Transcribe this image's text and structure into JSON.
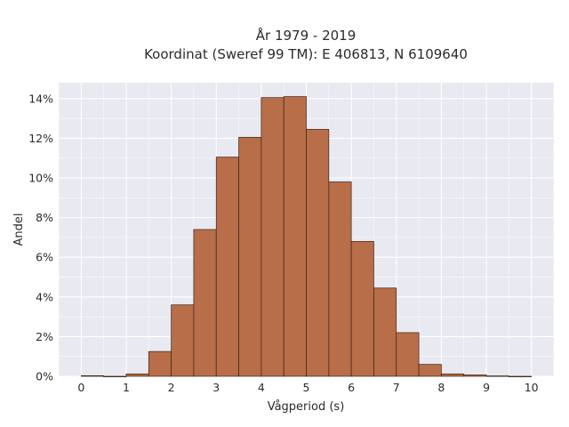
{
  "chart_data": {
    "type": "bar",
    "title_line1": "År 1979 - 2019",
    "title_line2": "Koordinat (Sweref 99 TM): E 406813, N 6109640",
    "xlabel": "Vågperiod (s)",
    "ylabel": "Andel",
    "bin_width": 0.5,
    "bins": [
      {
        "x0": 0.0,
        "x1": 0.5,
        "value": 0.0003
      },
      {
        "x0": 0.5,
        "x1": 1.0,
        "value": 0.0
      },
      {
        "x0": 1.0,
        "x1": 1.5,
        "value": 0.0012
      },
      {
        "x0": 1.5,
        "x1": 2.0,
        "value": 0.0125
      },
      {
        "x0": 2.0,
        "x1": 2.5,
        "value": 0.036
      },
      {
        "x0": 2.5,
        "x1": 3.0,
        "value": 0.074
      },
      {
        "x0": 3.0,
        "x1": 3.5,
        "value": 0.1105
      },
      {
        "x0": 3.5,
        "x1": 4.0,
        "value": 0.1205
      },
      {
        "x0": 4.0,
        "x1": 4.5,
        "value": 0.1405
      },
      {
        "x0": 4.5,
        "x1": 5.0,
        "value": 0.141
      },
      {
        "x0": 5.0,
        "x1": 5.5,
        "value": 0.1245
      },
      {
        "x0": 5.5,
        "x1": 6.0,
        "value": 0.098
      },
      {
        "x0": 6.0,
        "x1": 6.5,
        "value": 0.068
      },
      {
        "x0": 6.5,
        "x1": 7.0,
        "value": 0.0445
      },
      {
        "x0": 7.0,
        "x1": 7.5,
        "value": 0.022
      },
      {
        "x0": 7.5,
        "x1": 8.0,
        "value": 0.006
      },
      {
        "x0": 8.0,
        "x1": 8.5,
        "value": 0.0012
      },
      {
        "x0": 8.5,
        "x1": 9.0,
        "value": 0.0007
      },
      {
        "x0": 9.0,
        "x1": 9.5,
        "value": 0.0002
      },
      {
        "x0": 9.5,
        "x1": 10.0,
        "value": 0.0
      }
    ],
    "xlim": [
      -0.5,
      10.5
    ],
    "ylim": [
      0,
      0.148
    ],
    "x_ticks": [
      0,
      1,
      2,
      3,
      4,
      5,
      6,
      7,
      8,
      9,
      10
    ],
    "x_tick_labels": [
      "0",
      "1",
      "2",
      "3",
      "4",
      "5",
      "6",
      "7",
      "8",
      "9",
      "10"
    ],
    "y_ticks": [
      0,
      0.02,
      0.04,
      0.06,
      0.08,
      0.1,
      0.12,
      0.14
    ],
    "y_tick_labels": [
      "0%",
      "2%",
      "4%",
      "6%",
      "8%",
      "10%",
      "12%",
      "14%"
    ],
    "grid": true,
    "colors": {
      "bar_fill": "#b86e48",
      "bar_stroke": "#3b2418",
      "plot_background": "#e9e9f1",
      "grid": "#ffffff",
      "text": "#2b2b2b"
    }
  }
}
